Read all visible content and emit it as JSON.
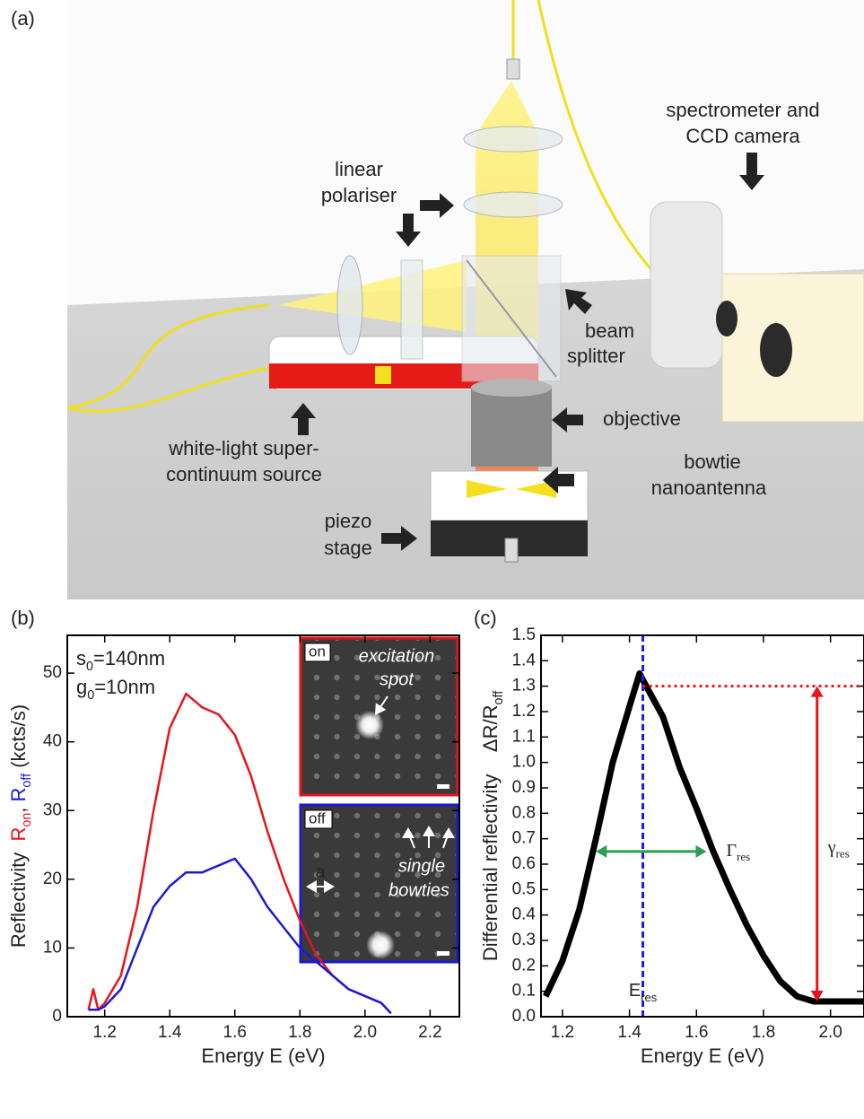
{
  "panel_a": {
    "tag": "(a)",
    "labels": [
      {
        "lines": [
          "spectrometer and",
          "CCD camera"
        ]
      },
      {
        "lines": [
          "linear",
          "polariser"
        ]
      },
      {
        "lines": [
          "beam",
          "splitter"
        ]
      },
      {
        "lines": [
          "objective"
        ]
      },
      {
        "lines": [
          "bowtie",
          "nanoantenna"
        ]
      },
      {
        "lines": [
          "white-light super-",
          "continuum source"
        ]
      },
      {
        "lines": [
          "piezo",
          "stage"
        ]
      }
    ]
  },
  "chart_data": [
    {
      "type": "line",
      "tag": "(b)",
      "xlabel": "Energy E (eV)",
      "ylabel": [
        {
          "text": "Reflectivity  "
        },
        {
          "text": "R",
          "color": "#e8141b"
        },
        {
          "text": "on",
          "sub": true,
          "color": "#e8141b"
        },
        {
          "text": ", "
        },
        {
          "text": "R",
          "color": "#1a1ad8"
        },
        {
          "text": "off",
          "sub": true,
          "color": "#1a1ad8"
        },
        {
          "text": " (kcts/s)"
        }
      ],
      "params": [
        [
          {
            "text": "s"
          },
          {
            "text": "0",
            "sub": true
          },
          {
            "text": "=140nm"
          }
        ],
        [
          {
            "text": "g"
          },
          {
            "text": "0",
            "sub": true
          },
          {
            "text": "=10nm"
          }
        ]
      ],
      "insets": [
        {
          "tag": "on",
          "caption": [
            "excitation",
            "spot"
          ],
          "color": "#e8141b"
        },
        {
          "tag": "off",
          "caption": [
            "single",
            "bowties"
          ],
          "scale": "a",
          "color": "#1a1ad8"
        }
      ],
      "x": [
        1.15,
        1.165,
        1.18,
        1.2,
        1.25,
        1.3,
        1.35,
        1.4,
        1.45,
        1.5,
        1.55,
        1.6,
        1.65,
        1.7,
        1.75,
        1.8,
        1.85,
        1.9,
        1.95,
        2.0,
        2.05,
        2.08
      ],
      "series": [
        {
          "color": "#e8141b",
          "values": [
            1,
            4,
            1,
            2,
            6,
            16,
            30,
            42,
            47,
            45,
            44,
            41,
            35,
            27,
            20,
            14,
            9,
            6,
            4,
            3,
            2,
            0.5
          ]
        },
        {
          "color": "#1a1ad8",
          "values": [
            1,
            1,
            1,
            1.5,
            4,
            10,
            16,
            19,
            21,
            21,
            22,
            23,
            20,
            16,
            13,
            10,
            8,
            6,
            4,
            3,
            2,
            0.5
          ]
        }
      ],
      "xlim": [
        1.085,
        2.29
      ],
      "ylim": [
        0,
        55.5
      ],
      "xticks": [
        1.2,
        1.4,
        1.6,
        1.8,
        {
          "value": 2.0,
          "label": "2.0"
        },
        2.2
      ],
      "yticks": [
        0,
        10,
        20,
        30,
        40,
        50
      ]
    },
    {
      "type": "line",
      "tag": "(c)",
      "xlabel": "Energy E (eV)",
      "ylabel": [
        {
          "text": "Differential reflectivity    "
        },
        {
          "text": "ΔR/R"
        },
        {
          "text": "off",
          "sub": true
        }
      ],
      "x": [
        1.15,
        1.2,
        1.25,
        1.3,
        1.35,
        1.4,
        1.43,
        1.45,
        1.5,
        1.55,
        1.6,
        1.65,
        1.7,
        1.75,
        1.8,
        1.85,
        1.9,
        1.95,
        2.0,
        2.05,
        2.1
      ],
      "series": [
        {
          "color": "#000000",
          "values": [
            0.08,
            0.22,
            0.42,
            0.7,
            1.0,
            1.22,
            1.35,
            1.3,
            1.18,
            0.98,
            0.82,
            0.65,
            0.5,
            0.36,
            0.24,
            0.14,
            0.08,
            0.06,
            0.06,
            0.06,
            0.06
          ]
        }
      ],
      "xlim": [
        1.136,
        2.1
      ],
      "ylim": [
        0,
        1.5
      ],
      "xticks": [
        1.2,
        1.4,
        1.6,
        1.8,
        {
          "value": 2.0,
          "label": "2.0"
        }
      ],
      "yticks": [
        {
          "value": 0,
          "label": "0.0"
        },
        0.1,
        0.2,
        0.3,
        0.4,
        0.5,
        0.6,
        0.7,
        0.8,
        0.9,
        {
          "value": 1,
          "label": "1.0"
        },
        1.1,
        1.2,
        1.3,
        1.4,
        1.5
      ],
      "annotations": [
        {
          "kind": "vline",
          "x": 1.44,
          "color": "#1a1aff",
          "label": [
            {
              "text": "E"
            },
            {
              "text": "res",
              "sub": true
            }
          ]
        },
        {
          "kind": "hline",
          "y": 1.3,
          "from": 1.44,
          "color": "#e8141b"
        },
        {
          "kind": "double_arrow_v",
          "x": 1.96,
          "y": [
            0.06,
            1.3
          ],
          "color": "#e8141b",
          "label": [
            {
              "text": "γ"
            },
            {
              "text": "res",
              "sub": true
            }
          ]
        },
        {
          "kind": "double_arrow_h",
          "y": 0.65,
          "x": [
            1.3,
            1.63
          ],
          "color": "#2e9e4f",
          "label": [
            {
              "text": "Γ"
            },
            {
              "text": "res",
              "sub": true
            }
          ]
        }
      ]
    }
  ]
}
